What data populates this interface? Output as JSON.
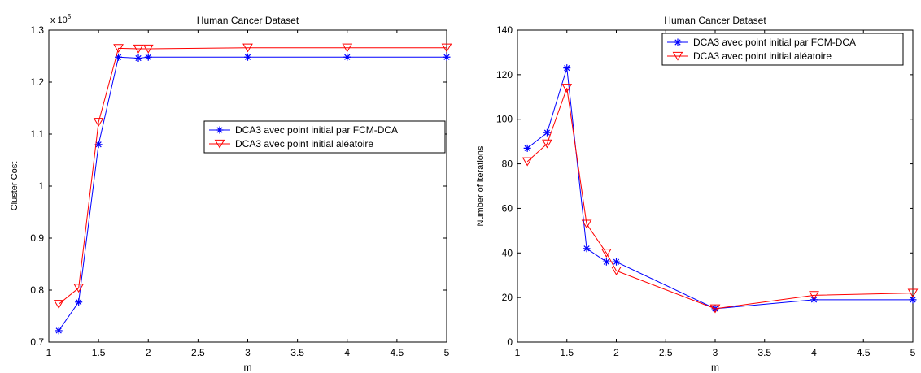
{
  "chart_data": [
    {
      "type": "line",
      "title": "Human Cancer Dataset",
      "xlabel": "m",
      "ylabel": "Cluster Cost",
      "y_multiplier_label": "x 10",
      "y_multiplier_exp": "5",
      "xlim": [
        1,
        5
      ],
      "ylim": [
        0.7,
        1.3
      ],
      "xticks": [
        1,
        1.5,
        2,
        2.5,
        3,
        3.5,
        4,
        4.5,
        5
      ],
      "xtick_labels": [
        "1",
        "1.5",
        "2",
        "2.5",
        "3",
        "3.5",
        "4",
        "4.5",
        "5"
      ],
      "yticks": [
        0.7,
        0.8,
        0.9,
        1.0,
        1.1,
        1.2,
        1.3
      ],
      "ytick_labels": [
        "0.7",
        "0.8",
        "0.9",
        "1",
        "1.1",
        "1.2",
        "1.3"
      ],
      "grid": false,
      "legend_position": "center-right",
      "x": [
        1.1,
        1.3,
        1.5,
        1.7,
        1.9,
        2.0,
        3.0,
        4.0,
        5.0
      ],
      "series": [
        {
          "name": "DCA3 avec point initial par FCM-DCA",
          "color": "#0000ff",
          "marker": "star",
          "values": [
            0.722,
            0.777,
            1.08,
            1.248,
            1.246,
            1.248,
            1.248,
            1.248,
            1.248
          ]
        },
        {
          "name": "DCA3 avec point initial aléatoire",
          "color": "#ff0000",
          "marker": "triangle-down",
          "values": [
            0.773,
            0.804,
            1.123,
            1.265,
            1.264,
            1.264,
            1.266,
            1.266,
            1.266
          ]
        }
      ]
    },
    {
      "type": "line",
      "title": "Human Cancer Dataset",
      "xlabel": "m",
      "ylabel": "Number of iterations",
      "xlim": [
        1,
        5
      ],
      "ylim": [
        0,
        140
      ],
      "xticks": [
        1,
        1.5,
        2,
        2.5,
        3,
        3.5,
        4,
        4.5,
        5
      ],
      "xtick_labels": [
        "1",
        "1.5",
        "2",
        "2.5",
        "3",
        "3.5",
        "4",
        "4.5",
        "5"
      ],
      "yticks": [
        0,
        20,
        40,
        60,
        80,
        100,
        120,
        140
      ],
      "ytick_labels": [
        "0",
        "20",
        "40",
        "60",
        "80",
        "100",
        "120",
        "140"
      ],
      "grid": false,
      "legend_position": "top-right",
      "x": [
        1.1,
        1.3,
        1.5,
        1.7,
        1.9,
        2.0,
        3.0,
        4.0,
        5.0
      ],
      "series": [
        {
          "name": "DCA3 avec point initial par FCM-DCA",
          "color": "#0000ff",
          "marker": "star",
          "values": [
            87,
            94,
            123,
            42,
            36,
            36,
            15,
            19,
            19
          ]
        },
        {
          "name": "DCA3 avec point initial aléatoire",
          "color": "#ff0000",
          "marker": "triangle-down",
          "values": [
            81,
            89,
            114,
            53,
            40,
            32,
            15,
            21,
            22
          ]
        }
      ]
    }
  ]
}
